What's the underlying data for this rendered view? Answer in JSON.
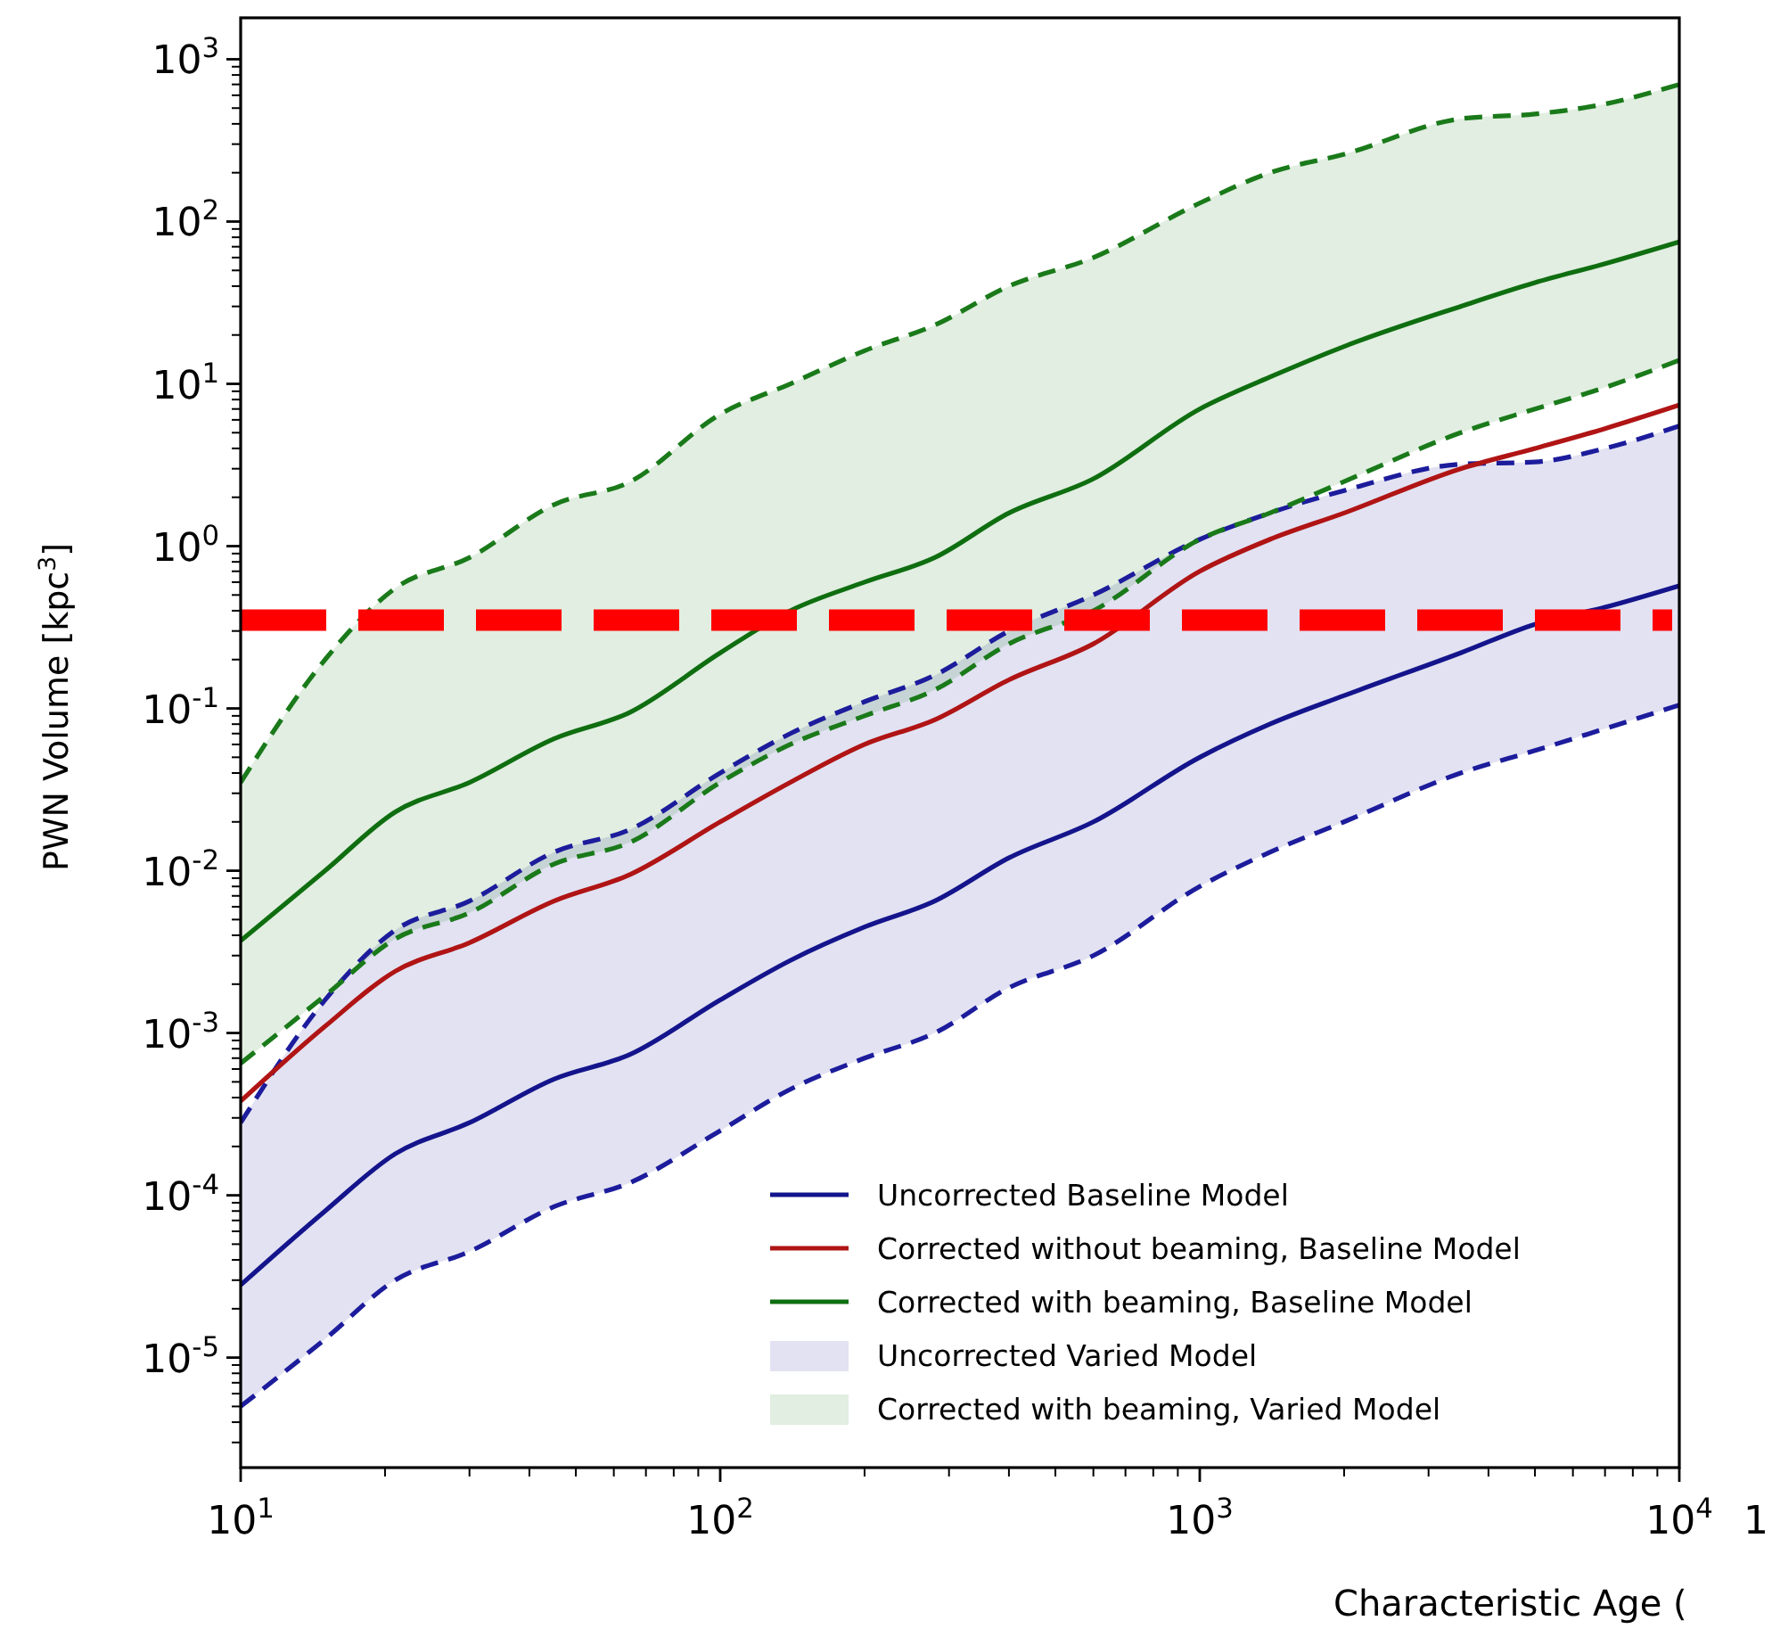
{
  "chart_data": {
    "type": "line",
    "xlabel": "Characteristic Age (",
    "ylabel": "PWN Volume [kpc$^{3}$]",
    "log": "xy",
    "xlim": [
      10,
      10000
    ],
    "ylim": [
      2.1e-06,
      1800
    ],
    "xticks": [
      {
        "value": 10,
        "label": "10$^{1}$"
      },
      {
        "value": 100,
        "label": "10$^{2}$"
      },
      {
        "value": 1000,
        "label": "10$^{3}$"
      },
      {
        "value": 10000,
        "label": "10$^{4}$"
      }
    ],
    "yticks": [
      {
        "value": 1e-05,
        "label": "10$^{-5}$"
      },
      {
        "value": 0.0001,
        "label": "10$^{-4}$"
      },
      {
        "value": 0.001,
        "label": "10$^{-3}$"
      },
      {
        "value": 0.01,
        "label": "10$^{-2}$"
      },
      {
        "value": 0.1,
        "label": "10$^{-1}$"
      },
      {
        "value": 1,
        "label": "10$^{0}$"
      },
      {
        "value": 10,
        "label": "10$^{1}$"
      },
      {
        "value": 100,
        "label": "10$^{2}$"
      },
      {
        "value": 1000,
        "label": "10$^{3}$"
      }
    ],
    "x": [
      10,
      15,
      21,
      30,
      45,
      65,
      100,
      140,
      200,
      280,
      400,
      600,
      1000,
      1400,
      2000,
      3500,
      5000,
      7000,
      10000
    ],
    "legend": "bottom right",
    "grid": false,
    "series": [
      {
        "name": "Uncorrected Varied Model",
        "line_style": "dashed",
        "color": "#1c1c9c",
        "values": [
          0.00028,
          0.0016,
          0.0043,
          0.0065,
          0.013,
          0.018,
          0.04,
          0.07,
          0.11,
          0.16,
          0.3,
          0.5,
          1.1,
          1.6,
          2.2,
          3.2,
          3.3,
          4.0,
          5.5
        ],
        "upper": [
          0.00028,
          0.0016,
          0.0043,
          0.0065,
          0.013,
          0.018,
          0.04,
          0.07,
          0.11,
          0.16,
          0.3,
          0.5,
          1.1,
          1.6,
          2.2,
          3.2,
          3.3,
          4.0,
          5.5
        ],
        "lower": [
          5e-06,
          1.3e-05,
          3e-05,
          4.5e-05,
          8.5e-05,
          0.00012,
          0.00025,
          0.00045,
          0.0007,
          0.001,
          0.0019,
          0.003,
          0.008,
          0.013,
          0.02,
          0.04,
          0.055,
          0.075,
          0.105
        ]
      },
      {
        "name": "Corrected with beaming, Varied Model",
        "line_style": "dashed",
        "color": "#1a7a1a",
        "values": [
          0.035,
          0.2,
          0.55,
          0.85,
          1.8,
          2.5,
          6.5,
          10,
          16,
          23,
          40,
          60,
          130,
          200,
          260,
          430,
          460,
          530,
          700
        ],
        "upper": [
          0.035,
          0.2,
          0.55,
          0.85,
          1.8,
          2.5,
          6.5,
          10,
          16,
          23,
          40,
          60,
          130,
          200,
          260,
          430,
          460,
          530,
          700
        ],
        "lower": [
          0.00065,
          0.0017,
          0.0038,
          0.0055,
          0.011,
          0.015,
          0.035,
          0.06,
          0.09,
          0.13,
          0.25,
          0.4,
          1.1,
          1.6,
          2.5,
          5,
          7,
          9.5,
          14
        ]
      },
      {
        "line_style": "dashed",
        "color": "#1c1c9c",
        "values": [
          5e-06,
          1.3e-05,
          3e-05,
          4.5e-05,
          8.5e-05,
          0.00012,
          0.00025,
          0.00045,
          0.0007,
          0.001,
          0.0019,
          0.003,
          0.008,
          0.013,
          0.02,
          0.04,
          0.055,
          0.075,
          0.105
        ]
      },
      {
        "line_style": "dashed",
        "color": "#1a7a1a",
        "values": [
          0.00065,
          0.0017,
          0.0038,
          0.0055,
          0.011,
          0.015,
          0.035,
          0.06,
          0.09,
          0.13,
          0.25,
          0.4,
          1.1,
          1.6,
          2.5,
          5,
          7,
          9.5,
          14
        ]
      },
      {
        "name": "Uncorrected Baseline Model",
        "color": "#14148c",
        "values": [
          2.8e-05,
          8e-05,
          0.00018,
          0.00028,
          0.00052,
          0.00074,
          0.0016,
          0.0028,
          0.0045,
          0.0065,
          0.012,
          0.02,
          0.05,
          0.08,
          0.12,
          0.22,
          0.33,
          0.42,
          0.57
        ]
      },
      {
        "name": "Corrected without beaming, Baseline Model",
        "color": "#b01414",
        "values": [
          0.00038,
          0.0011,
          0.0024,
          0.0036,
          0.0065,
          0.0095,
          0.02,
          0.035,
          0.06,
          0.085,
          0.15,
          0.25,
          0.7,
          1.1,
          1.6,
          3.0,
          4.0,
          5.3,
          7.4
        ]
      },
      {
        "name": "Corrected with beaming, Baseline Model",
        "color": "#0f6e10",
        "values": [
          0.0037,
          0.01,
          0.023,
          0.035,
          0.065,
          0.095,
          0.22,
          0.4,
          0.6,
          0.85,
          1.6,
          2.6,
          7,
          11,
          17,
          30,
          42,
          55,
          75
        ]
      }
    ],
    "ref_lines": [
      {
        "axis": "y",
        "value": 0.35,
        "color": "#ff0000",
        "line_style": "dashed"
      }
    ],
    "annotations": [
      "1"
    ]
  }
}
